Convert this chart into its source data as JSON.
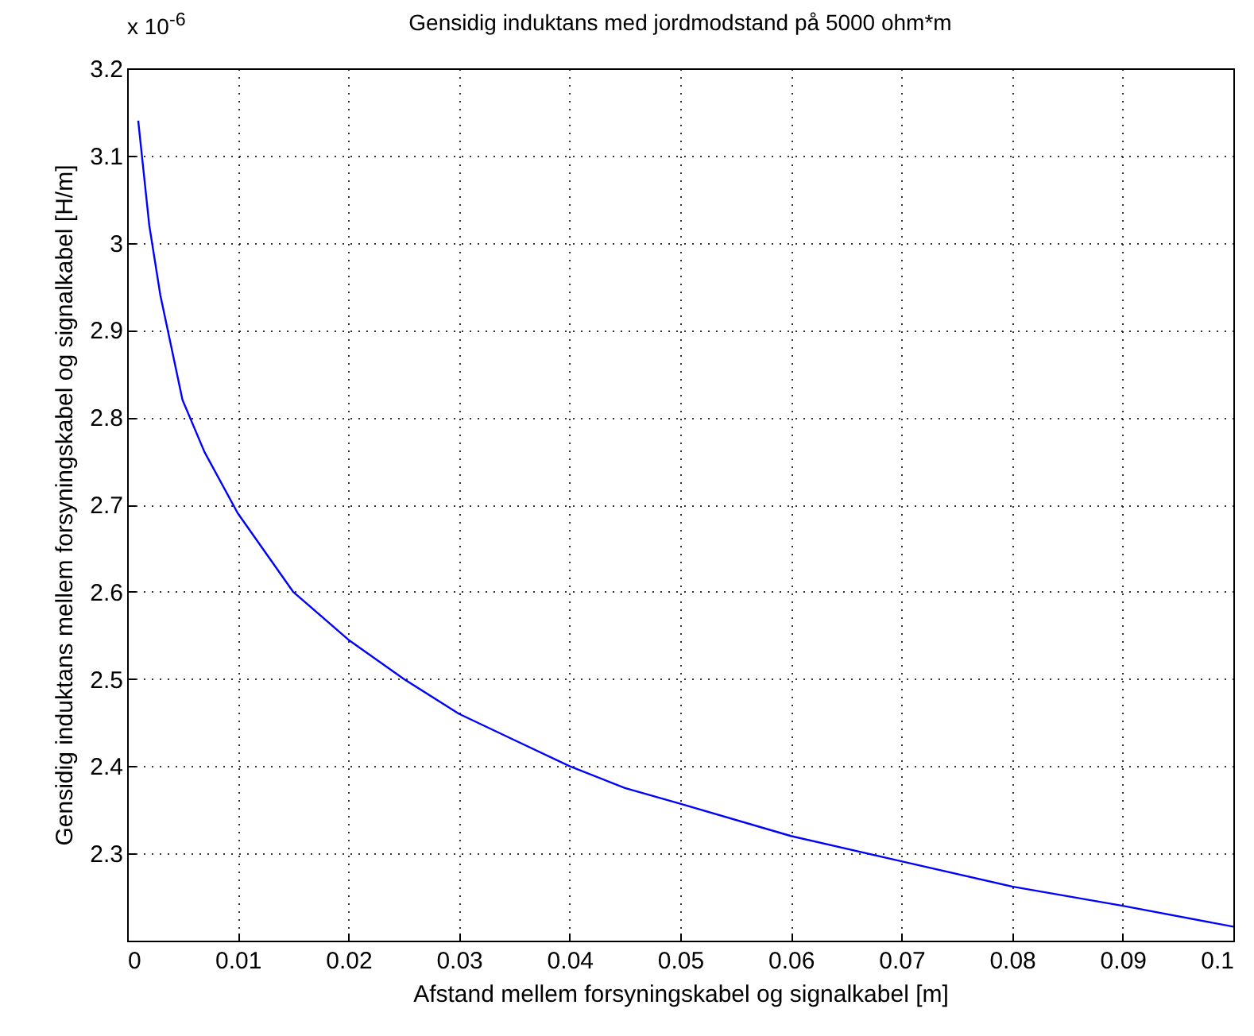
{
  "chart_data": {
    "type": "line",
    "title": "Gensidig induktans med jordmodstand på 5000 ohm*m",
    "xlabel": "Afstand mellem forsyningskabel og signalkabel [m]",
    "ylabel": "Gensidig induktans mellem forsyningskabel og signalkabel [H/m]",
    "annotations": [
      "x 10$^{-6}$"
    ],
    "x": [
      0.001,
      0.002,
      0.003,
      0.004,
      0.005,
      0.007,
      0.01,
      0.015,
      0.02,
      0.025,
      0.03,
      0.035,
      0.04,
      0.045,
      0.05,
      0.06,
      0.07,
      0.08,
      0.09,
      0.1
    ],
    "series": [
      {
        "color": "#0000ff",
        "values": [
          3.14,
          3.02,
          2.94,
          2.88,
          2.82,
          2.76,
          2.69,
          2.6,
          2.545,
          2.5,
          2.46,
          2.43,
          2.4,
          2.375,
          2.357,
          2.32,
          2.291,
          2.262,
          2.24,
          2.216
        ]
      }
    ],
    "xlim": [
      0,
      0.1
    ],
    "xticks": [
      0,
      0.01,
      0.02,
      0.03,
      0.04,
      0.05,
      0.06,
      0.07,
      0.08,
      0.09,
      0.1
    ],
    "ylim": [
      2.2,
      3.2
    ],
    "yticks": [
      2.3,
      2.4,
      2.5,
      2.6,
      2.7,
      2.8,
      2.9,
      3,
      3.1,
      3.2
    ],
    "grid": true,
    "line_style": "solid",
    "marker": "none",
    "legend": false
  }
}
